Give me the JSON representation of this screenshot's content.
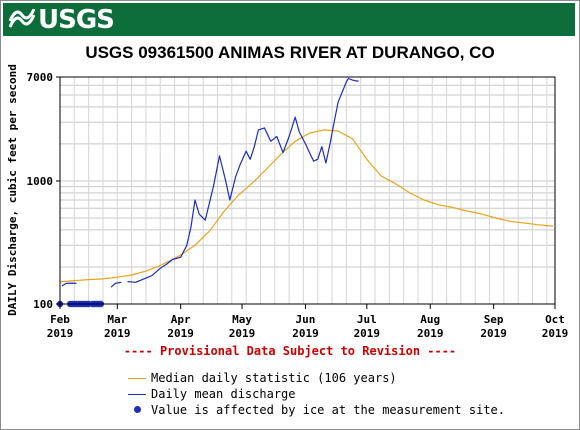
{
  "header": {
    "logo_text": "USGS",
    "banner_color": "#0d6e3c"
  },
  "chart_data": {
    "type": "line",
    "title": "USGS 09361500 ANIMAS RIVER AT DURANGO, CO",
    "ylabel": "DAILY Discharge, cubic feet per second",
    "y_scale": "log",
    "ylim": [
      100,
      7000
    ],
    "y_ticks": [
      100,
      1000,
      7000
    ],
    "y_tick_labels": [
      "100",
      "1000",
      "7000"
    ],
    "x_start": "2019-02-01",
    "x_end": "2019-10-01",
    "x_ticks": [
      {
        "month": "Feb",
        "year": "2019",
        "date": "2019-02-01"
      },
      {
        "month": "Mar",
        "year": "2019",
        "date": "2019-03-01"
      },
      {
        "month": "Apr",
        "year": "2019",
        "date": "2019-04-01"
      },
      {
        "month": "May",
        "year": "2019",
        "date": "2019-05-01"
      },
      {
        "month": "Jun",
        "year": "2019",
        "date": "2019-06-01"
      },
      {
        "month": "Jul",
        "year": "2019",
        "date": "2019-07-01"
      },
      {
        "month": "Aug",
        "year": "2019",
        "date": "2019-08-01"
      },
      {
        "month": "Sep",
        "year": "2019",
        "date": "2019-09-01"
      },
      {
        "month": "Oct",
        "year": "2019",
        "date": "2019-10-01"
      }
    ],
    "grid": true,
    "series": [
      {
        "name": "Median daily statistic (106 years)",
        "color": "#e8a317",
        "points": [
          [
            "2019-02-01",
            150
          ],
          [
            "2019-02-02",
            152
          ],
          [
            "2019-02-08",
            155
          ],
          [
            "2019-02-15",
            158
          ],
          [
            "2019-02-22",
            160
          ],
          [
            "2019-03-01",
            165
          ],
          [
            "2019-03-08",
            172
          ],
          [
            "2019-03-15",
            185
          ],
          [
            "2019-03-22",
            205
          ],
          [
            "2019-03-29",
            235
          ],
          [
            "2019-04-01",
            250
          ],
          [
            "2019-04-08",
            300
          ],
          [
            "2019-04-15",
            390
          ],
          [
            "2019-04-22",
            560
          ],
          [
            "2019-04-29",
            760
          ],
          [
            "2019-05-06",
            960
          ],
          [
            "2019-05-13",
            1250
          ],
          [
            "2019-05-20",
            1650
          ],
          [
            "2019-05-27",
            2100
          ],
          [
            "2019-06-03",
            2450
          ],
          [
            "2019-06-10",
            2600
          ],
          [
            "2019-06-17",
            2550
          ],
          [
            "2019-06-24",
            2200
          ],
          [
            "2019-07-01",
            1500
          ],
          [
            "2019-07-08",
            1100
          ],
          [
            "2019-07-15",
            950
          ],
          [
            "2019-07-22",
            800
          ],
          [
            "2019-07-29",
            700
          ],
          [
            "2019-08-05",
            640
          ],
          [
            "2019-08-12",
            610
          ],
          [
            "2019-08-19",
            570
          ],
          [
            "2019-08-26",
            540
          ],
          [
            "2019-09-02",
            500
          ],
          [
            "2019-09-09",
            470
          ],
          [
            "2019-09-16",
            455
          ],
          [
            "2019-09-23",
            440
          ],
          [
            "2019-09-30",
            430
          ]
        ]
      },
      {
        "name": "Daily mean discharge",
        "color": "#1c2dbf",
        "segments": [
          [
            [
              "2019-02-02",
              140
            ],
            [
              "2019-02-04",
              147
            ],
            [
              "2019-02-07",
              148
            ],
            [
              "2019-02-09",
              147
            ]
          ],
          [
            [
              "2019-02-26",
              137
            ],
            [
              "2019-02-28",
              147
            ],
            [
              "2019-03-03",
              150
            ]
          ],
          [
            [
              "2019-03-06",
              152
            ],
            [
              "2019-03-10",
              150
            ],
            [
              "2019-03-14",
              160
            ],
            [
              "2019-03-18",
              170
            ],
            [
              "2019-03-22",
              195
            ],
            [
              "2019-03-25",
              210
            ],
            [
              "2019-03-28",
              230
            ],
            [
              "2019-04-01",
              240
            ],
            [
              "2019-04-04",
              300
            ],
            [
              "2019-04-06",
              420
            ],
            [
              "2019-04-08",
              700
            ],
            [
              "2019-04-10",
              540
            ],
            [
              "2019-04-13",
              480
            ],
            [
              "2019-04-17",
              900
            ],
            [
              "2019-04-20",
              1600
            ],
            [
              "2019-04-23",
              1000
            ],
            [
              "2019-04-25",
              700
            ],
            [
              "2019-04-28",
              1100
            ],
            [
              "2019-04-30",
              1350
            ],
            [
              "2019-05-03",
              1750
            ],
            [
              "2019-05-05",
              1500
            ],
            [
              "2019-05-07",
              1900
            ],
            [
              "2019-05-09",
              2600
            ],
            [
              "2019-05-12",
              2700
            ],
            [
              "2019-05-15",
              2100
            ],
            [
              "2019-05-18",
              2300
            ],
            [
              "2019-05-21",
              1700
            ],
            [
              "2019-05-24",
              2300
            ],
            [
              "2019-05-27",
              3300
            ],
            [
              "2019-05-29",
              2500
            ],
            [
              "2019-06-01",
              2000
            ],
            [
              "2019-06-03",
              1700
            ],
            [
              "2019-06-05",
              1450
            ],
            [
              "2019-06-07",
              1500
            ],
            [
              "2019-06-09",
              1900
            ],
            [
              "2019-06-11",
              1400
            ],
            [
              "2019-06-13",
              2000
            ],
            [
              "2019-06-15",
              3000
            ],
            [
              "2019-06-17",
              4400
            ],
            [
              "2019-06-19",
              5300
            ],
            [
              "2019-06-21",
              6400
            ],
            [
              "2019-06-22",
              6800
            ],
            [
              "2019-06-24",
              6600
            ],
            [
              "2019-06-26",
              6500
            ],
            [
              "2019-06-27",
              6500
            ]
          ]
        ]
      },
      {
        "name": "Value is affected by ice at the measurement site.",
        "color": "#1c2dbf",
        "marker": "circle",
        "points": [
          [
            "2019-02-01",
            100
          ],
          [
            "2019-02-06",
            100
          ],
          [
            "2019-02-07",
            100
          ],
          [
            "2019-02-08",
            100
          ],
          [
            "2019-02-09",
            100
          ],
          [
            "2019-02-10",
            100
          ],
          [
            "2019-02-11",
            100
          ],
          [
            "2019-02-12",
            100
          ],
          [
            "2019-02-13",
            100
          ],
          [
            "2019-02-14",
            100
          ],
          [
            "2019-02-15",
            100
          ],
          [
            "2019-02-17",
            100
          ],
          [
            "2019-02-18",
            100
          ],
          [
            "2019-02-19",
            100
          ],
          [
            "2019-02-20",
            100
          ],
          [
            "2019-02-21",
            100
          ]
        ]
      }
    ],
    "annotation": "---- Provisional Data Subject to Revision ----"
  },
  "legend": {
    "items": [
      {
        "label": "Median daily statistic (106 years)",
        "color": "#e8a317",
        "symbol": "line"
      },
      {
        "label": "Daily mean discharge",
        "color": "#1c2dbf",
        "symbol": "line"
      },
      {
        "label": "Value is affected by ice at the measurement site.",
        "color": "#1c2dbf",
        "symbol": "dot"
      }
    ]
  }
}
